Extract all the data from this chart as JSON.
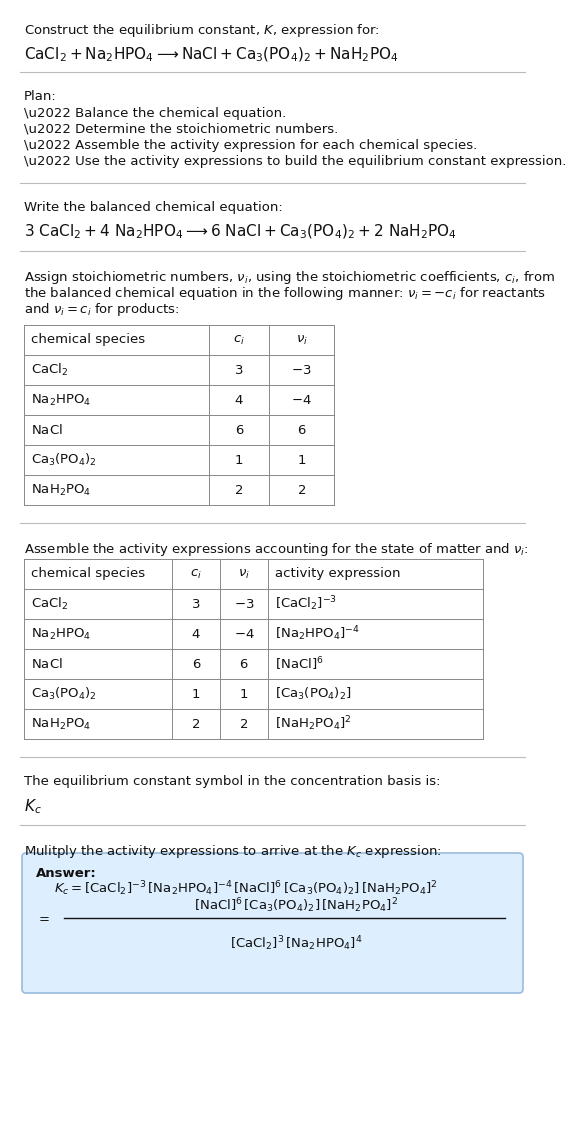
{
  "title_line1": "Construct the equilibrium constant, $K$, expression for:",
  "title_line2_parts": [
    "$\\mathrm{CaCl_2 + Na_2HPO_4}$",
    " $\\longrightarrow$ ",
    "$\\mathrm{NaCl + Ca_3(PO_4)_2 + NaH_2PO_4}$"
  ],
  "plan_header": "Plan:",
  "plan_items": [
    "\\u2022 Balance the chemical equation.",
    "\\u2022 Determine the stoichiometric numbers.",
    "\\u2022 Assemble the activity expression for each chemical species.",
    "\\u2022 Use the activity expressions to build the equilibrium constant expression."
  ],
  "balanced_header": "Write the balanced chemical equation:",
  "balanced_eq": "$\\mathrm{3\\ CaCl_2 + 4\\ Na_2HPO_4 \\longrightarrow 6\\ NaCl + Ca_3(PO_4)_2 + 2\\ NaH_2PO_4}$",
  "stoich_lines": [
    "Assign stoichiometric numbers, $\\nu_i$, using the stoichiometric coefficients, $c_i$, from",
    "the balanced chemical equation in the following manner: $\\nu_i = -c_i$ for reactants",
    "and $\\nu_i = c_i$ for products:"
  ],
  "table1_headers": [
    "chemical species",
    "$c_i$",
    "$\\nu_i$"
  ],
  "table1_rows": [
    [
      "$\\mathrm{CaCl_2}$",
      "3",
      "$-3$"
    ],
    [
      "$\\mathrm{Na_2HPO_4}$",
      "4",
      "$-4$"
    ],
    [
      "$\\mathrm{NaCl}$",
      "6",
      "$6$"
    ],
    [
      "$\\mathrm{Ca_3(PO_4)_2}$",
      "1",
      "$1$"
    ],
    [
      "$\\mathrm{NaH_2PO_4}$",
      "2",
      "$2$"
    ]
  ],
  "activity_header": "Assemble the activity expressions accounting for the state of matter and $\\nu_i$:",
  "table2_headers": [
    "chemical species",
    "$c_i$",
    "$\\nu_i$",
    "activity expression"
  ],
  "table2_rows": [
    [
      "$\\mathrm{CaCl_2}$",
      "3",
      "$-3$",
      "$[\\mathrm{CaCl_2}]^{-3}$"
    ],
    [
      "$\\mathrm{Na_2HPO_4}$",
      "4",
      "$-4$",
      "$[\\mathrm{Na_2HPO_4}]^{-4}$"
    ],
    [
      "$\\mathrm{NaCl}$",
      "6",
      "$6$",
      "$[\\mathrm{NaCl}]^6$"
    ],
    [
      "$\\mathrm{Ca_3(PO_4)_2}$",
      "1",
      "$1$",
      "$[\\mathrm{Ca_3(PO_4)_2}]$"
    ],
    [
      "$\\mathrm{NaH_2PO_4}$",
      "2",
      "$2$",
      "$[\\mathrm{NaH_2PO_4}]^2$"
    ]
  ],
  "Kc_header": "The equilibrium constant symbol in the concentration basis is:",
  "Kc_symbol": "$K_c$",
  "multiply_header": "Mulitply the activity expressions to arrive at the $K_c$ expression:",
  "answer_label": "Answer:",
  "answer_line1": "$K_c = [\\mathrm{CaCl_2}]^{-3}\\,[\\mathrm{Na_2HPO_4}]^{-4}\\,[\\mathrm{NaCl}]^6\\,[\\mathrm{Ca_3(PO_4)_2}]\\,[\\mathrm{NaH_2PO_4}]^2$",
  "answer_num": "$[\\mathrm{NaCl}]^6\\,[\\mathrm{Ca_3(PO_4)_2}]\\,[\\mathrm{NaH_2PO_4}]^2$",
  "answer_den": "$[\\mathrm{CaCl_2}]^3\\,[\\mathrm{Na_2HPO_4}]^4$",
  "bg_color": "#ffffff",
  "answer_box_color": "#ddeeff",
  "answer_box_edge": "#99bbdd",
  "separator_color": "#bbbbbb",
  "table_border_color": "#888888",
  "fs": 9.5,
  "fs_large": 11.0
}
